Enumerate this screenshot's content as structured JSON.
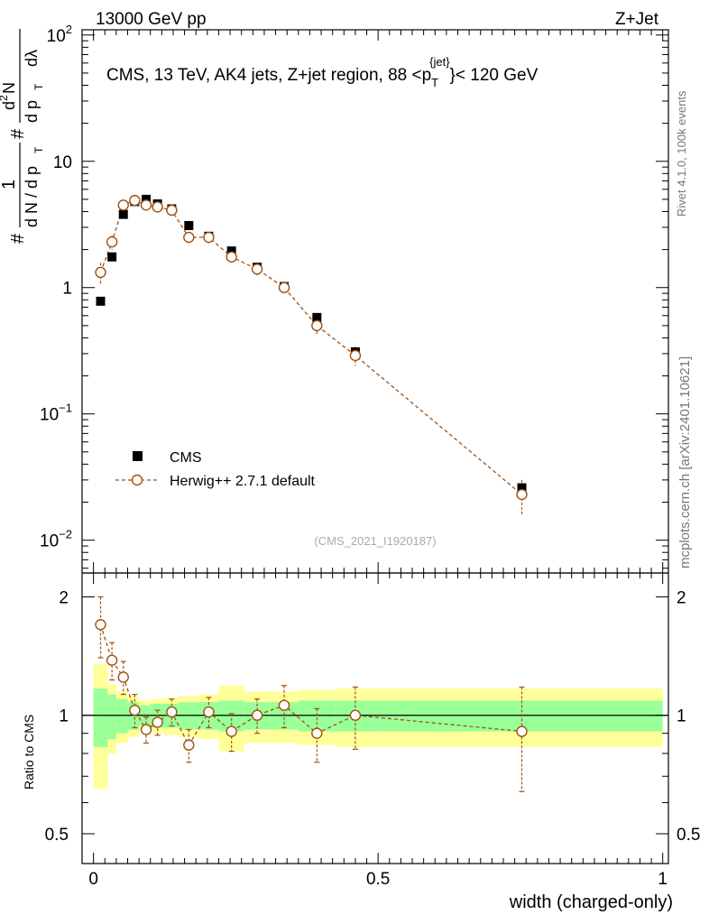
{
  "header": {
    "left": "13000 GeV pp",
    "right": "Z+Jet"
  },
  "side_labels": {
    "rivet": "Rivet 4.1.0,  100k events",
    "mcplots": "mcplots.cern.ch [arXiv:2401.10621]"
  },
  "ylabel_main": {
    "hash1": "#",
    "one": "1",
    "dN_dpT": "d N / d p",
    "T_sub": "T",
    "hash2": "#",
    "d2N": "d",
    "two": "2",
    "N": "N",
    "dpT_dlambda": "d p",
    "T_sub2": "T",
    "dlambda": "dλ"
  },
  "chart_data": {
    "type": "line",
    "title": "CMS, 13 TeV, AK4 jets, Z+jet region, 88 <p",
    "title_sub": "T",
    "title_sup": "{jet}",
    "title_end": "}< 120 GeV",
    "watermark": "(CMS_2021_I1920187)",
    "xlabel": "width (charged-only)",
    "ylabel_ratio": "Ratio to CMS",
    "xlim": [
      -0.02,
      1.01
    ],
    "ylim_main": [
      0.0055,
      110
    ],
    "ylim_ratio": [
      0.42,
      2.3
    ],
    "y_log": true,
    "main_yticks": [
      {
        "value": 0.01,
        "base": "10",
        "exp": "−2"
      },
      {
        "value": 0.1,
        "base": "10",
        "exp": "−1"
      },
      {
        "value": 1,
        "base": "1",
        "exp": ""
      },
      {
        "value": 10,
        "base": "10",
        "exp": ""
      },
      {
        "value": 100,
        "base": "10",
        "exp": "2"
      }
    ],
    "ratio_yticks": [
      {
        "value": 0.5,
        "label": "0.5"
      },
      {
        "value": 1,
        "label": "1"
      },
      {
        "value": 2,
        "label": "2"
      }
    ],
    "xticks": [
      {
        "value": 0,
        "label": "0"
      },
      {
        "value": 0.5,
        "label": "0.5"
      },
      {
        "value": 1,
        "label": "1"
      }
    ],
    "legend": [
      {
        "name": "CMS",
        "marker": "square",
        "color": "#000000"
      },
      {
        "name": "Herwig++ 2.7.1 default",
        "marker": "circle",
        "color": "#a0520f"
      }
    ],
    "cms": {
      "x": [
        0.0125,
        0.0325,
        0.0525,
        0.0725,
        0.0925,
        0.1125,
        0.1375,
        0.1675,
        0.2025,
        0.2425,
        0.2875,
        0.335,
        0.3925,
        0.46,
        0.7525
      ],
      "y": [
        0.78,
        1.75,
        3.8,
        4.8,
        5.0,
        4.6,
        4.2,
        3.1,
        2.55,
        1.95,
        1.45,
        1.02,
        0.58,
        0.31,
        0.026
      ],
      "bins": [
        [
          0.0,
          0.025
        ],
        [
          0.025,
          0.04
        ],
        [
          0.04,
          0.06
        ],
        [
          0.06,
          0.08
        ],
        [
          0.08,
          0.1
        ],
        [
          0.1,
          0.125
        ],
        [
          0.125,
          0.15
        ],
        [
          0.15,
          0.185
        ],
        [
          0.185,
          0.22
        ],
        [
          0.22,
          0.265
        ],
        [
          0.265,
          0.31
        ],
        [
          0.31,
          0.36
        ],
        [
          0.36,
          0.425
        ],
        [
          0.425,
          0.5
        ],
        [
          0.5,
          1.0
        ]
      ]
    },
    "herwig": {
      "x": [
        0.0125,
        0.0325,
        0.0525,
        0.0725,
        0.0925,
        0.1125,
        0.1375,
        0.1675,
        0.2025,
        0.2425,
        0.2875,
        0.335,
        0.3925,
        0.46,
        0.7525
      ],
      "y": [
        1.32,
        2.3,
        4.5,
        4.9,
        4.5,
        4.35,
        4.1,
        2.5,
        2.5,
        1.75,
        1.4,
        1.0,
        0.5,
        0.29,
        0.023
      ],
      "yerr": [
        0.25,
        0.3,
        0.45,
        0.45,
        0.4,
        0.35,
        0.35,
        0.25,
        0.25,
        0.2,
        0.15,
        0.12,
        0.08,
        0.05,
        0.007
      ]
    },
    "ratio": {
      "herwig": [
        1.7,
        1.38,
        1.25,
        1.03,
        0.92,
        0.96,
        1.02,
        0.84,
        1.02,
        0.91,
        1.0,
        1.06,
        0.9,
        1.0,
        0.91
      ],
      "herwig_err": [
        0.3,
        0.15,
        0.12,
        0.1,
        0.07,
        0.07,
        0.08,
        0.08,
        0.09,
        0.1,
        0.1,
        0.13,
        0.14,
        0.18,
        0.27
      ],
      "band_green": [
        0.17,
        0.13,
        0.1,
        0.08,
        0.06,
        0.07,
        0.07,
        0.08,
        0.08,
        0.09,
        0.08,
        0.08,
        0.09,
        0.09,
        0.09
      ],
      "band_yellow": [
        0.35,
        0.2,
        0.15,
        0.12,
        0.09,
        0.1,
        0.11,
        0.12,
        0.13,
        0.19,
        0.15,
        0.15,
        0.16,
        0.17,
        0.17
      ]
    }
  }
}
